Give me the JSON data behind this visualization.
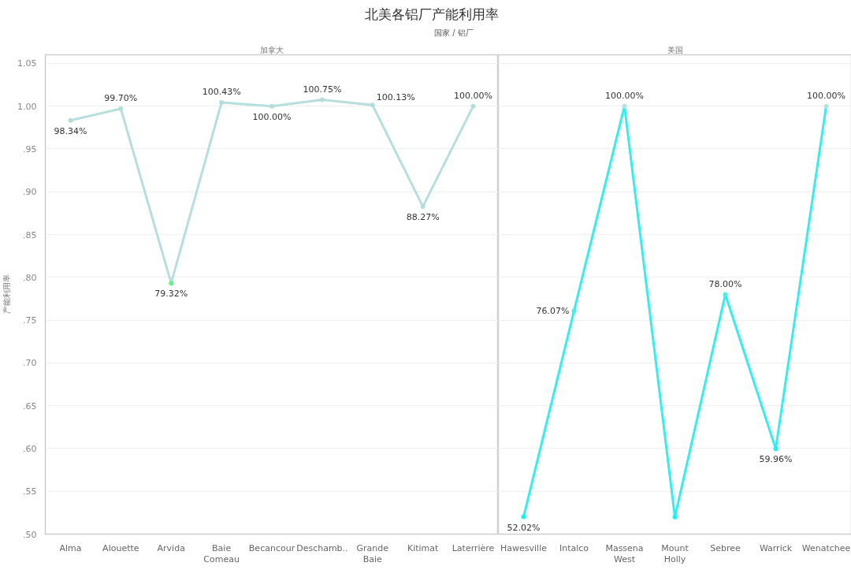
{
  "chart_data": [
    {
      "type": "line",
      "title": "北美各铝厂产能利用率",
      "xlabel": "国家 / 铝厂",
      "subtitle": "加拿大",
      "ylabel": "产能利用率",
      "categories": [
        "Alma",
        "Alouette",
        "Arvida",
        "Baie Comeau",
        "Becancour",
        "Deschamb..",
        "Grande Baie",
        "Kitimat",
        "Laterrière"
      ],
      "series": [
        {
          "color": "#b6dedc",
          "colors": [
            "#b8dcdc",
            "#b2e0d8",
            "#5ef58a",
            "#b4deda",
            "#b8dcdc",
            "#b8dcdc",
            "#b8dcdc",
            "#b3dedc",
            "#b8dcdc"
          ],
          "values": [
            0.9834,
            0.997,
            0.7932,
            1.0043,
            1.0,
            1.0075,
            1.0013,
            0.8827,
            1.0
          ],
          "value_labels": [
            "98.34%",
            "99.70%",
            "79.32%",
            "100.43%",
            "100.00%",
            "100.75%",
            "100.13%",
            "88.27%",
            "100.00%"
          ]
        }
      ],
      "ylim": [
        0.5,
        1.06
      ],
      "yticks": [
        {
          "value": 0.5,
          "label": ".50"
        },
        {
          "value": 0.55,
          "label": ".55"
        },
        {
          "value": 0.6,
          "label": ".60"
        },
        {
          "value": 0.65,
          "label": ".65"
        },
        {
          "value": 0.7,
          "label": ".70"
        },
        {
          "value": 0.75,
          "label": ".75"
        },
        {
          "value": 0.8,
          "label": ".80"
        },
        {
          "value": 0.85,
          "label": ".85"
        },
        {
          "value": 0.9,
          "label": ".90"
        },
        {
          "value": 0.95,
          "label": ".95"
        },
        {
          "value": 1.0,
          "label": "1.00"
        },
        {
          "value": 1.05,
          "label": "1.05"
        }
      ],
      "grid": "y",
      "marker": "circle",
      "line_style": "solid"
    },
    {
      "type": "line",
      "subtitle": "美国",
      "categories": [
        "Hawesville",
        "Intalco",
        "Massena West",
        "Mount Holly",
        "Sebree",
        "Warrick",
        "Wenatchee"
      ],
      "series": [
        {
          "color": "#33eeee",
          "colors": [
            "#17f0f0",
            "#55e9e6",
            "#b9dfde",
            "#16f2f2",
            "#58ebe8",
            "#2aeeee",
            "#b9dfde"
          ],
          "values": [
            0.5202,
            0.7607,
            1.0,
            0.52,
            0.78,
            0.5996,
            1.0
          ],
          "value_labels": [
            "52.02%",
            "76.07%",
            "100.00%",
            null,
            "78.00%",
            "59.96%",
            "100.00%"
          ]
        }
      ],
      "ylim": [
        0.5,
        1.06
      ],
      "yticks": [
        {
          "value": 0.5,
          "label": null
        },
        {
          "value": 0.55,
          "label": null
        },
        {
          "value": 0.6,
          "label": null
        },
        {
          "value": 0.65,
          "label": null
        },
        {
          "value": 0.7,
          "label": null
        },
        {
          "value": 0.75,
          "label": null
        },
        {
          "value": 0.8,
          "label": null
        },
        {
          "value": 0.85,
          "label": null
        },
        {
          "value": 0.9,
          "label": null
        },
        {
          "value": 0.95,
          "label": null
        },
        {
          "value": 1.0,
          "label": null
        },
        {
          "value": 1.05,
          "label": null
        }
      ],
      "tick_labels": "x",
      "grid": "y",
      "marker": "circle",
      "line_style": "solid"
    }
  ]
}
